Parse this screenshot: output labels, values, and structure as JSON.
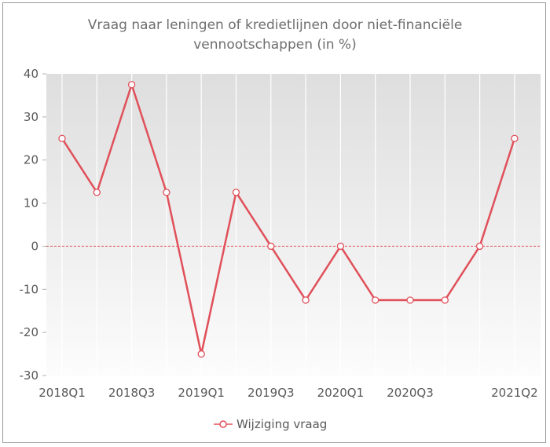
{
  "chart_data": {
    "type": "line",
    "title": "Vraag naar leningen of kredietlijnen door niet-financiële vennootschappen (in %)",
    "title_lines": [
      "Vraag naar leningen of kredietlijnen door niet-financiële",
      "vennootschappen (in %)"
    ],
    "x": [
      "2018Q1",
      "2018Q2",
      "2018Q3",
      "2018Q4",
      "2019Q1",
      "2019Q2",
      "2019Q3",
      "2019Q4",
      "2020Q1",
      "2020Q2",
      "2020Q3",
      "2020Q4",
      "2021Q1",
      "2021Q2"
    ],
    "x_tick_labels": [
      "2018Q1",
      "2018Q3",
      "2019Q1",
      "2019Q3",
      "2020Q1",
      "2020Q3",
      "2021Q2"
    ],
    "series": [
      {
        "name": "Wijziging vraag",
        "color": "#e0505a",
        "values": [
          25,
          12.5,
          37.5,
          12.5,
          -25,
          12.5,
          0,
          -12.5,
          0,
          -12.5,
          -12.5,
          -12.5,
          0,
          25
        ]
      }
    ],
    "ylim": [
      -30,
      40
    ],
    "yticks": [
      -30,
      -20,
      -10,
      0,
      10,
      20,
      30,
      40
    ],
    "zero_line": true,
    "grid": "vertical",
    "legend": "bottom-center"
  }
}
